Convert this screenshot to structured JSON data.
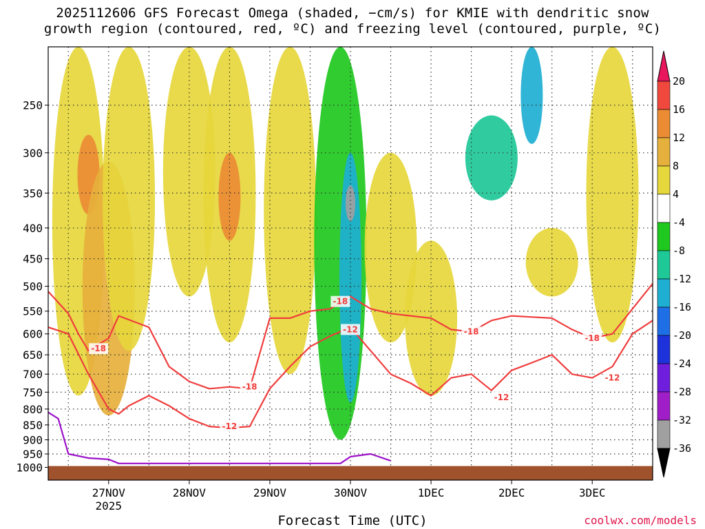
{
  "title": "2025112606 GFS Forecast Omega (shaded, −cm/s) for KMIE with dendritic snow\ngrowth region (contoured, red, ºC) and freezing level (contoured, purple, ºC)",
  "credit": "coolwx.com/models",
  "chart_data": {
    "type": "heatmap",
    "title": "2025112606 GFS Forecast Omega (shaded, −cm/s) for KMIE with dendritic snow growth region (contoured, red, ºC) and freezing level (contoured, purple, ºC)",
    "xlabel": "Forecast Time (UTC)",
    "ylabel": "",
    "x_ticks": [
      "27NOV",
      "28NOV",
      "29NOV",
      "30NOV",
      "1DEC",
      "2DEC",
      "3DEC"
    ],
    "x_year_label": "2025",
    "y_ticks": [
      250,
      300,
      350,
      400,
      450,
      500,
      550,
      600,
      650,
      700,
      750,
      800,
      850,
      900,
      950,
      1000
    ],
    "y_scale": "log-pressure (inverted)",
    "y_range": [
      200,
      1050
    ],
    "x_range": [
      "2025-11-26T06",
      "2025-12-03T18"
    ],
    "grid": true,
    "colorbar": {
      "levels": [
        20,
        16,
        12,
        8,
        4,
        -4,
        -8,
        -12,
        -16,
        -20,
        -24,
        -28,
        -32,
        -36
      ],
      "colors": [
        "#e8175d",
        "#f0483c",
        "#eb8c34",
        "#e6b03c",
        "#e6d73c",
        "#ffffff",
        "#1ec81e",
        "#1ec897",
        "#1eafd2",
        "#1e6ee6",
        "#1e32dc",
        "#6e1edc",
        "#a01ec8",
        "#a0a0a0",
        "#000000"
      ]
    },
    "omega_regions": [
      {
        "time": "2025-11-26T15",
        "p_top": 200,
        "p_bottom": 760,
        "value": 6
      },
      {
        "time": "2025-11-26T18",
        "p_top": 280,
        "p_bottom": 380,
        "value": 14
      },
      {
        "time": "2025-11-27T00",
        "p_top": 310,
        "p_bottom": 820,
        "value": 10
      },
      {
        "time": "2025-11-27T06",
        "p_top": 200,
        "p_bottom": 640,
        "value": 6
      },
      {
        "time": "2025-11-28T00",
        "p_top": 200,
        "p_bottom": 520,
        "value": 5
      },
      {
        "time": "2025-11-28T12",
        "p_top": 200,
        "p_bottom": 620,
        "value": 6
      },
      {
        "time": "2025-11-28T12",
        "p_top": 300,
        "p_bottom": 420,
        "value": 14
      },
      {
        "time": "2025-11-29T06",
        "p_top": 200,
        "p_bottom": 700,
        "value": 5
      },
      {
        "time": "2025-11-29T21",
        "p_top": 200,
        "p_bottom": 900,
        "value": -8
      },
      {
        "time": "2025-11-30T00",
        "p_top": 300,
        "p_bottom": 780,
        "value": -14
      },
      {
        "time": "2025-11-30T00",
        "p_top": 340,
        "p_bottom": 390,
        "value": -34
      },
      {
        "time": "2025-11-30T12",
        "p_top": 300,
        "p_bottom": 620,
        "value": 6
      },
      {
        "time": "2025-12-01T00",
        "p_top": 420,
        "p_bottom": 760,
        "value": 5
      },
      {
        "time": "2025-12-01T18",
        "p_top": 260,
        "p_bottom": 360,
        "value": -10
      },
      {
        "time": "2025-12-02T06",
        "p_top": 200,
        "p_bottom": 290,
        "value": -14
      },
      {
        "time": "2025-12-02T12",
        "p_top": 400,
        "p_bottom": 520,
        "value": 7
      },
      {
        "time": "2025-12-03T06",
        "p_top": 200,
        "p_bottom": 620,
        "value": 6
      }
    ],
    "series": [
      {
        "name": "-18",
        "color": "#f03c3c",
        "points": [
          [
            "2025-11-26T06",
            510
          ],
          [
            "2025-11-26T12",
            555
          ],
          [
            "2025-11-26T15",
            600
          ],
          [
            "2025-11-26T18",
            640
          ],
          [
            "2025-11-27T00",
            610
          ],
          [
            "2025-11-27T03",
            560
          ],
          [
            "2025-11-27T12",
            585
          ],
          [
            "2025-11-27T18",
            680
          ],
          [
            "2025-11-28T00",
            720
          ],
          [
            "2025-11-28T06",
            740
          ],
          [
            "2025-11-28T12",
            735
          ],
          [
            "2025-11-28T18",
            740
          ],
          [
            "2025-11-29T00",
            565
          ],
          [
            "2025-11-29T06",
            565
          ],
          [
            "2025-11-29T12",
            550
          ],
          [
            "2025-11-29T18",
            545
          ],
          [
            "2025-11-30T00",
            520
          ],
          [
            "2025-11-30T06",
            545
          ],
          [
            "2025-11-30T12",
            555
          ],
          [
            "2025-11-30T18",
            560
          ],
          [
            "2025-12-01T00",
            565
          ],
          [
            "2025-12-01T06",
            590
          ],
          [
            "2025-12-01T12",
            595
          ],
          [
            "2025-12-01T18",
            570
          ],
          [
            "2025-12-02T00",
            560
          ],
          [
            "2025-12-02T12",
            565
          ],
          [
            "2025-12-02T18",
            590
          ],
          [
            "2025-12-03T00",
            610
          ],
          [
            "2025-12-03T06",
            600
          ],
          [
            "2025-12-03T12",
            545
          ],
          [
            "2025-12-03T18",
            495
          ]
        ]
      },
      {
        "name": "-12",
        "color": "#f03c3c",
        "points": [
          [
            "2025-11-26T06",
            585
          ],
          [
            "2025-11-26T12",
            600
          ],
          [
            "2025-11-26T18",
            700
          ],
          [
            "2025-11-27T00",
            800
          ],
          [
            "2025-11-27T03",
            815
          ],
          [
            "2025-11-27T06",
            790
          ],
          [
            "2025-11-27T12",
            760
          ],
          [
            "2025-11-27T18",
            790
          ],
          [
            "2025-11-28T00",
            830
          ],
          [
            "2025-11-28T06",
            855
          ],
          [
            "2025-11-28T12",
            860
          ],
          [
            "2025-11-28T18",
            855
          ],
          [
            "2025-11-29T00",
            740
          ],
          [
            "2025-11-29T06",
            680
          ],
          [
            "2025-11-29T12",
            630
          ],
          [
            "2025-11-29T18",
            605
          ],
          [
            "2025-11-30T00",
            585
          ],
          [
            "2025-11-30T06",
            640
          ],
          [
            "2025-11-30T12",
            700
          ],
          [
            "2025-11-30T18",
            725
          ],
          [
            "2025-12-01T00",
            760
          ],
          [
            "2025-12-01T06",
            710
          ],
          [
            "2025-12-01T12",
            700
          ],
          [
            "2025-12-01T18",
            745
          ],
          [
            "2025-12-02T00",
            690
          ],
          [
            "2025-12-02T06",
            670
          ],
          [
            "2025-12-02T12",
            650
          ],
          [
            "2025-12-02T18",
            700
          ],
          [
            "2025-12-03T00",
            710
          ],
          [
            "2025-12-03T06",
            680
          ],
          [
            "2025-12-03T12",
            600
          ],
          [
            "2025-12-03T18",
            570
          ]
        ]
      },
      {
        "name": "freezing level",
        "color": "#9b10c8",
        "points": [
          [
            "2025-11-26T06",
            810
          ],
          [
            "2025-11-26T09",
            830
          ],
          [
            "2025-11-26T12",
            950
          ],
          [
            "2025-11-26T18",
            965
          ],
          [
            "2025-11-27T00",
            970
          ],
          [
            "2025-11-27T03",
            985
          ],
          [
            "2025-11-29T21",
            985
          ],
          [
            "2025-11-30T00",
            960
          ],
          [
            "2025-11-30T06",
            950
          ],
          [
            "2025-11-30T12",
            975
          ]
        ]
      }
    ],
    "contour_labels": [
      {
        "text": "-18",
        "time": "2025-11-26T21",
        "p": 635
      },
      {
        "text": "-18",
        "time": "2025-11-28T18",
        "p": 735
      },
      {
        "text": "-18",
        "time": "2025-11-29T21",
        "p": 530
      },
      {
        "text": "-18",
        "time": "2025-12-01T12",
        "p": 595
      },
      {
        "text": "-18",
        "time": "2025-12-03T00",
        "p": 610
      },
      {
        "text": "-12",
        "time": "2025-11-28T12",
        "p": 855
      },
      {
        "text": "-12",
        "time": "2025-11-30T00",
        "p": 590
      },
      {
        "text": "-12",
        "time": "2025-12-01T21",
        "p": 765
      },
      {
        "text": "-12",
        "time": "2025-12-03T06",
        "p": 710
      }
    ],
    "surface_color": "#a0522d"
  }
}
